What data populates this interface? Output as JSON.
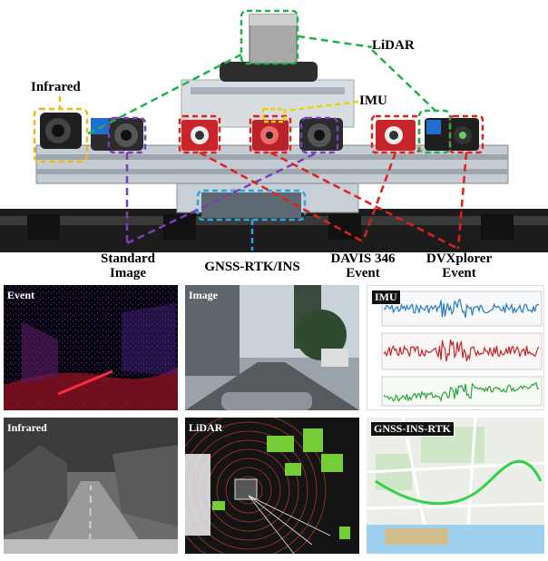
{
  "sensor_labels": {
    "lidar": "LiDAR",
    "infrared": "Infrared",
    "imu": "IMU",
    "standard_image_line1": "Standard",
    "standard_image_line2": "Image",
    "gnss": "GNSS-RTK/INS",
    "davis_line1": "DAVIS 346",
    "davis_line2": "Event",
    "dvxplorer_line1": "DVXplorer",
    "dvxplorer_line2": "Event"
  },
  "panels": {
    "event": "Event",
    "image": "Image",
    "imu": "IMU",
    "infrared": "Infrared",
    "lidar": "LiDAR",
    "gnss": "GNSS-INS-RTK"
  },
  "colors": {
    "lidar": "#1db34a",
    "infrared": "#f2b51a",
    "imu": "#e8d400",
    "standard_image": "#7a3fb5",
    "gnss": "#2aa7e0",
    "event": "#e0201b"
  }
}
